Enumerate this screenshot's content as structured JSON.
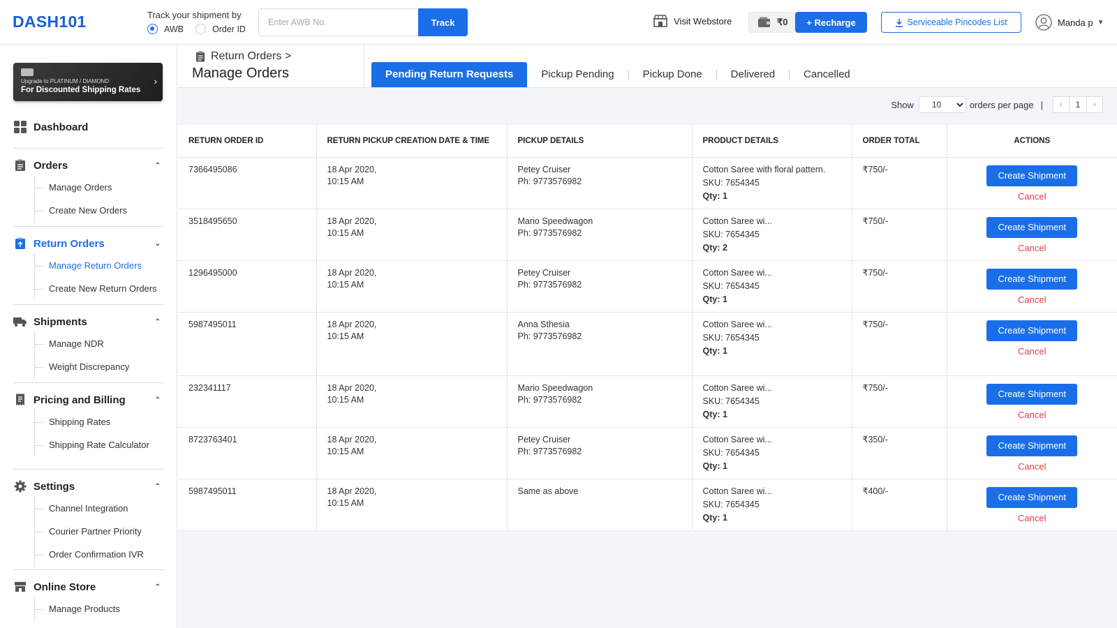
{
  "header": {
    "logo": "DASH101",
    "track_label": "Track your shipment by",
    "radio_awb": "AWB",
    "radio_order": "Order ID",
    "awb_placeholder": "Enter AWB No.",
    "track_button": "Track",
    "visit_webstore": "Visit Webstore",
    "wallet_balance": "₹0",
    "recharge_button": "+ Recharge",
    "pincodes_button": "Serviceable Pincodes List",
    "user_name": "Manda p"
  },
  "sidebar": {
    "upgrade_line1": "Upgrade to PLATINUM / DIAMOND",
    "upgrade_line2": "For Discounted Shipping Rates",
    "dashboard": "Dashboard",
    "orders": {
      "label": "Orders",
      "items": [
        "Manage Orders",
        "Create New Orders"
      ]
    },
    "return_orders": {
      "label": "Return Orders",
      "items": [
        "Manage Return Orders",
        "Create New Return Orders"
      ]
    },
    "shipments": {
      "label": "Shipments",
      "items": [
        "Manage NDR",
        "Weight Discrepancy"
      ]
    },
    "billing": {
      "label": "Pricing and Billing",
      "items": [
        "Shipping Rates",
        "Shipping Rate Calculator"
      ]
    },
    "settings": {
      "label": "Settings",
      "items": [
        "Channel Integration",
        "Courier Partner Priority",
        "Order Confirmation IVR"
      ]
    },
    "online_store": {
      "label": "Online Store",
      "items": [
        "Manage Products"
      ]
    }
  },
  "main": {
    "breadcrumb": "Return Orders >",
    "title": "Manage Orders",
    "tabs": [
      "Pending Return Requests",
      "Pickup Pending",
      "Pickup Done",
      "Delivered",
      "Cancelled"
    ],
    "paging": {
      "show": "Show",
      "per_page_value": "10",
      "per_page_label": "orders per page",
      "pipe": "|",
      "page": "1"
    },
    "columns": [
      "Return Order ID",
      "Return Pickup Creation Date & Time",
      "Pickup Details",
      "Product Details",
      "Order Total",
      "Actions"
    ],
    "create_label": "Create Shipment",
    "cancel_label": "Cancel",
    "rows": [
      {
        "id": "7366495086",
        "date": "18 Apr 2020,",
        "time": "10:15 AM",
        "name": "Petey Cruiser",
        "phone": "Ph: 9773576982",
        "product": "Cotton Saree with floral pattern.",
        "sku": "SKU: 7654345",
        "qty": "Qty: 1",
        "total": "₹750/-"
      },
      {
        "id": "3518495650",
        "date": "18 Apr 2020,",
        "time": "10:15 AM",
        "name": "Mario Speedwagon",
        "phone": "Ph: 9773576982",
        "product": "Cotton Saree wi...",
        "sku": "SKU: 7654345",
        "qty": "Qty: 2",
        "total": "₹750/-"
      },
      {
        "id": "1296495000",
        "date": "18 Apr 2020,",
        "time": "10:15 AM",
        "name": "Petey Cruiser",
        "phone": "Ph: 9773576982",
        "product": "Cotton Saree wi...",
        "sku": "SKU: 7654345",
        "qty": "Qty: 1",
        "total": "₹750/-"
      },
      {
        "id": "5987495011",
        "date": "18 Apr 2020,",
        "time": "10:15 AM",
        "name": "Anna Sthesia",
        "phone": "Ph: 9773576982",
        "product": "Cotton Saree wi...",
        "sku": "SKU: 7654345",
        "qty": "Qty: 1",
        "total": "₹750/-"
      },
      {
        "id": "232341117",
        "date": "18 Apr 2020,",
        "time": "10:15 AM",
        "name": "Mario Speedwagon",
        "phone": "Ph: 9773576982",
        "product": "Cotton Saree wi...",
        "sku": "SKU: 7654345",
        "qty": "Qty: 1",
        "total": "₹750/-"
      },
      {
        "id": "8723763401",
        "date": "18 Apr 2020,",
        "time": "10:15 AM",
        "name": "Petey Cruiser",
        "phone": "Ph: 9773576982",
        "product": "Cotton Saree wi...",
        "sku": "SKU: 7654345",
        "qty": "Qty: 1",
        "total": "₹350/-"
      },
      {
        "id": "5987495011",
        "date": "18 Apr 2020,",
        "time": "10:15 AM",
        "name": "Same as above",
        "phone": "",
        "product": "Cotton Saree wi...",
        "sku": "SKU: 7654345",
        "qty": "Qty: 1",
        "total": "₹400/-"
      }
    ]
  },
  "colors": {
    "accent": "#1a6fe8",
    "cancel": "#e23c4a",
    "background": "#f4f5f8"
  }
}
